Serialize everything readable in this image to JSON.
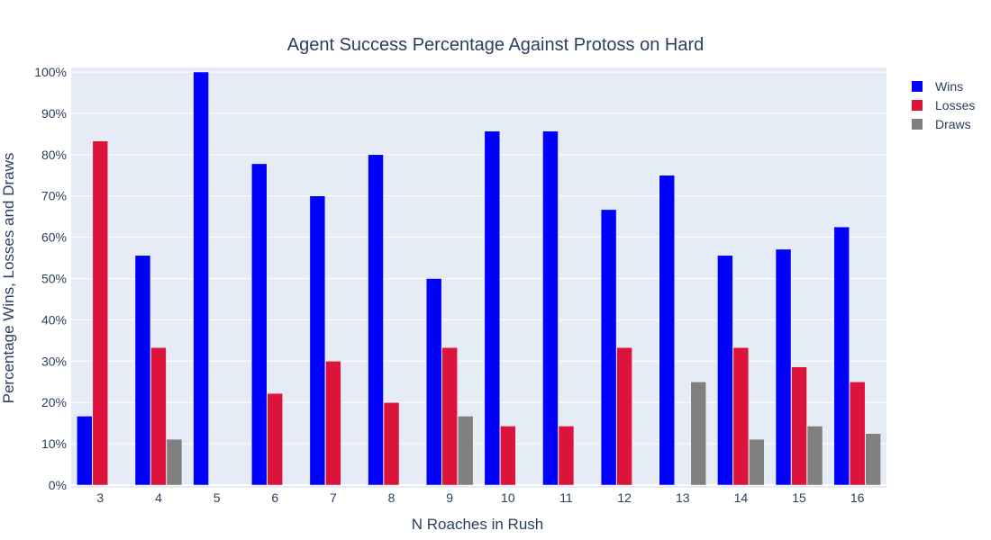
{
  "chart_data": {
    "type": "bar",
    "title": "Agent Success Percentage Against Protoss on Hard",
    "xlabel": "N Roaches in Rush",
    "ylabel": "Percentage Wins, Losses and Draws",
    "categories": [
      "3",
      "4",
      "5",
      "6",
      "7",
      "8",
      "9",
      "10",
      "11",
      "12",
      "13",
      "14",
      "15",
      "16"
    ],
    "ylim": [
      0,
      100
    ],
    "yticks": [
      0,
      10,
      20,
      30,
      40,
      50,
      60,
      70,
      80,
      90,
      100
    ],
    "ytick_suffix": "%",
    "grid": true,
    "legend_position": "top-right",
    "series": [
      {
        "name": "Wins",
        "color": "#0000ff",
        "values": [
          16.7,
          55.6,
          100,
          77.8,
          70,
          80,
          50,
          85.7,
          85.7,
          66.7,
          75,
          55.6,
          57.1,
          62.5
        ]
      },
      {
        "name": "Losses",
        "color": "#dc143c",
        "values": [
          83.3,
          33.3,
          0,
          22.2,
          30,
          20,
          33.3,
          14.3,
          14.3,
          33.3,
          0,
          33.3,
          28.6,
          25
        ]
      },
      {
        "name": "Draws",
        "color": "#808080",
        "values": [
          0,
          11.1,
          0,
          0,
          0,
          0,
          16.7,
          0,
          0,
          0,
          25,
          11.1,
          14.3,
          12.5
        ]
      }
    ]
  }
}
